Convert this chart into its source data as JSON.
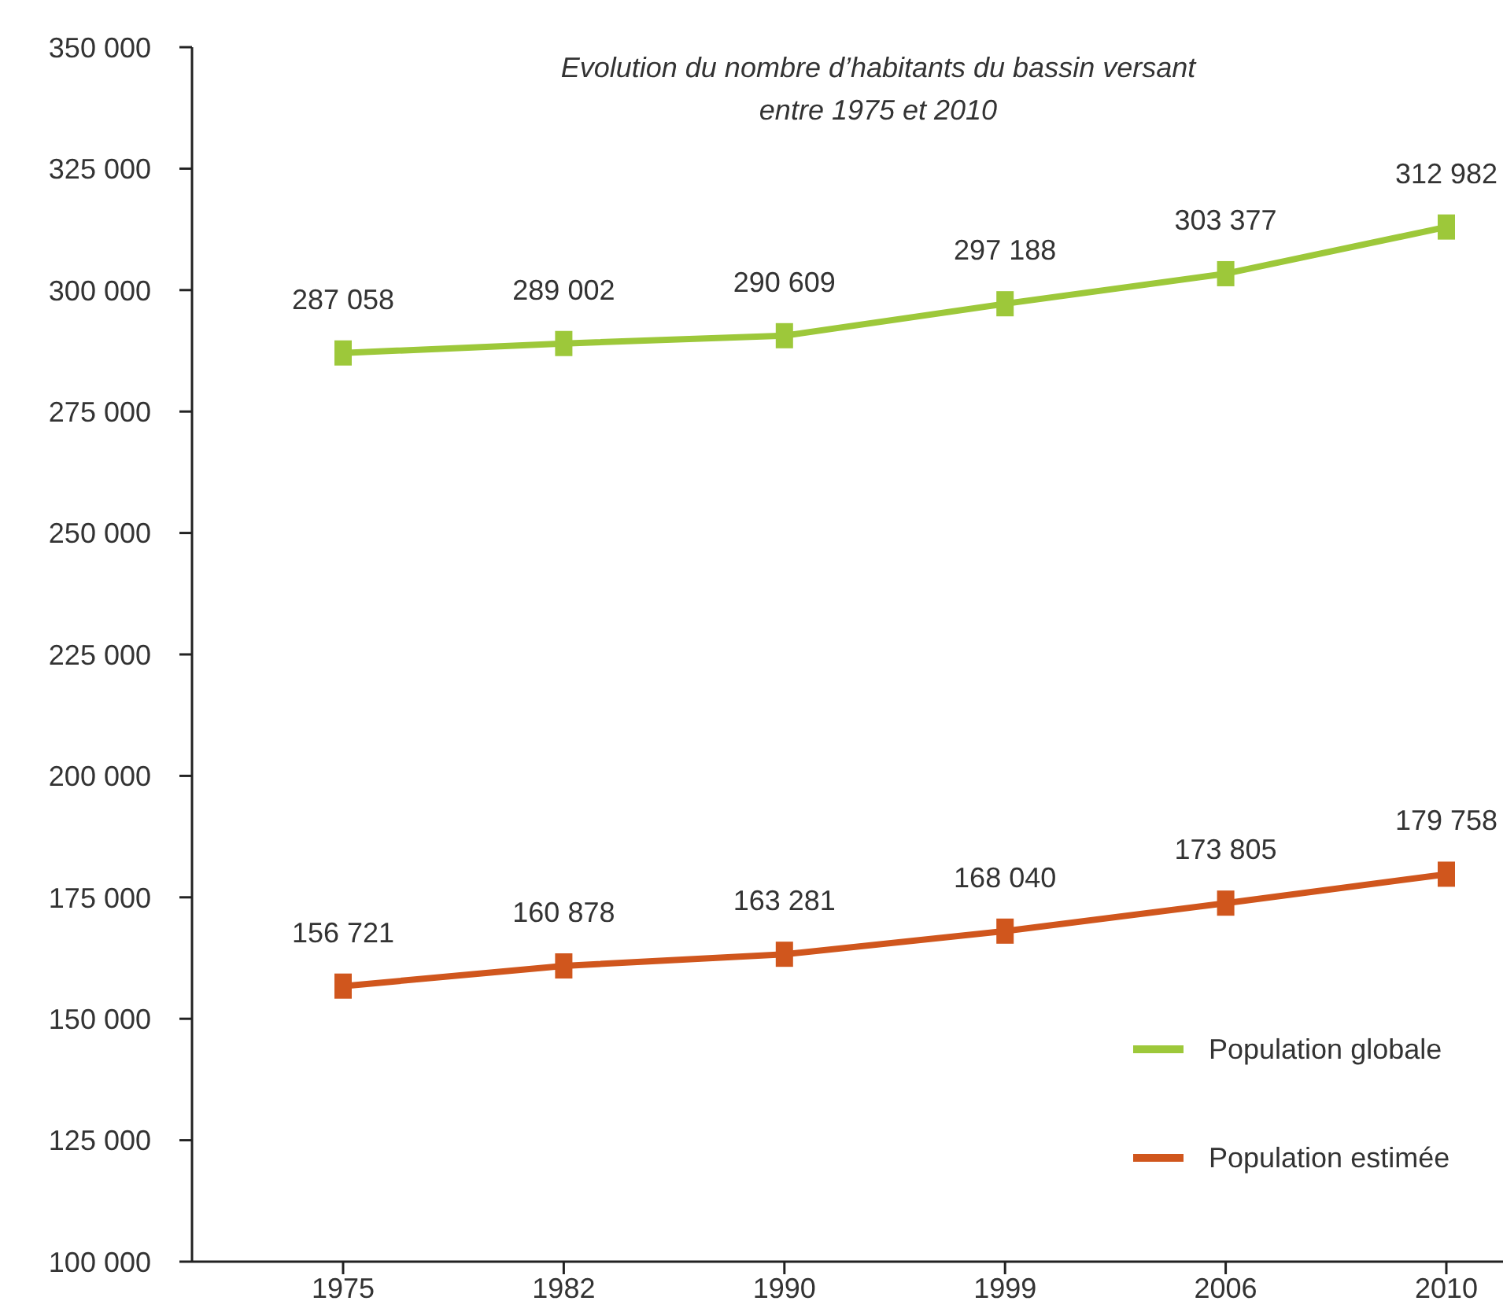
{
  "chart_data": {
    "type": "line",
    "title": "Evolution du nombre d’habitants du bassin versant\nentre 1975 et 2010",
    "categories": [
      "1975",
      "1982",
      "1990",
      "1999",
      "2006",
      "2010"
    ],
    "series": [
      {
        "name": "Population globale",
        "color": "#9dc83a",
        "values": [
          287058,
          289002,
          290609,
          297188,
          303377,
          312982
        ],
        "value_labels": [
          "287 058",
          "289 002",
          "290 609",
          "297 188",
          "303 377",
          "312 982"
        ]
      },
      {
        "name": "Population estimée",
        "color": "#d0561d",
        "values": [
          156721,
          160878,
          163281,
          168040,
          173805,
          179758
        ],
        "value_labels": [
          "156 721",
          "160 878",
          "163 281",
          "168 040",
          "173 805",
          "179 758"
        ]
      }
    ],
    "ylim": [
      100000,
      350000
    ],
    "yticks": [
      {
        "value": 100000,
        "label": "100 000"
      },
      {
        "value": 125000,
        "label": "125 000"
      },
      {
        "value": 150000,
        "label": "150 000"
      },
      {
        "value": 175000,
        "label": "175 000"
      },
      {
        "value": 200000,
        "label": "200 000"
      },
      {
        "value": 225000,
        "label": "225 000"
      },
      {
        "value": 250000,
        "label": "250 000"
      },
      {
        "value": 275000,
        "label": "275 000"
      },
      {
        "value": 300000,
        "label": "300 000"
      },
      {
        "value": 325000,
        "label": "325 000"
      },
      {
        "value": 350000,
        "label": "350 000"
      }
    ],
    "grid": false,
    "legend": "bottom right",
    "marker": "square",
    "line_style": "solid"
  }
}
